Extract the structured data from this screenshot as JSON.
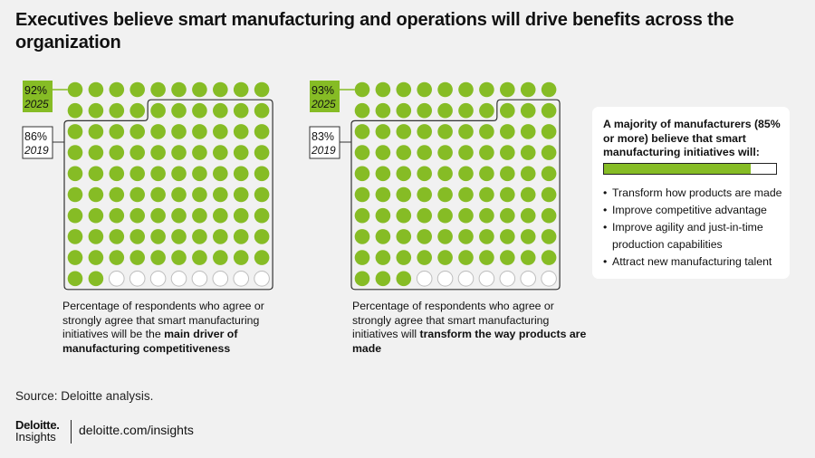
{
  "title": "Executives believe smart manufacturing and operations will drive benefits across the organization",
  "chart_data": [
    {
      "type": "waffle",
      "total": 100,
      "series": [
        {
          "name": "2025",
          "value_percent": 92,
          "label_value": "92%",
          "label_year": "2025"
        },
        {
          "name": "2019",
          "value_percent": 86,
          "label_value": "86%",
          "label_year": "2019"
        }
      ],
      "caption_plain": "Percentage of respondents who agree or strongly agree that smart manufacturing initiatives will be the ",
      "caption_bold": "main driver of manufacturing competitiveness"
    },
    {
      "type": "waffle",
      "total": 100,
      "series": [
        {
          "name": "2025",
          "value_percent": 93,
          "label_value": "93%",
          "label_year": "2025"
        },
        {
          "name": "2019",
          "value_percent": 83,
          "label_value": "83%",
          "label_year": "2019"
        }
      ],
      "caption_plain": "Percentage of respondents who agree or strongly agree that smart manufacturing initiatives will ",
      "caption_bold": "transform the way products are made"
    }
  ],
  "panel": {
    "title": "A majority of manufacturers (85% or more) believe that smart manufacturing initiatives will:",
    "bar_fill_percent": 85,
    "items": [
      "Transform how products are made",
      "Improve competitive advantage",
      "Improve agility and just-in-time production capabilities",
      "Attract new manufacturing talent"
    ]
  },
  "source": "Source: Deloitte analysis.",
  "brand": {
    "name": "Deloitte.",
    "sub": "Insights",
    "url": "deloitte.com/insights"
  },
  "colors": {
    "filled": "#86bc25",
    "empty": "#ffffff",
    "outline": "#333333",
    "background": "#f1f1f1"
  }
}
